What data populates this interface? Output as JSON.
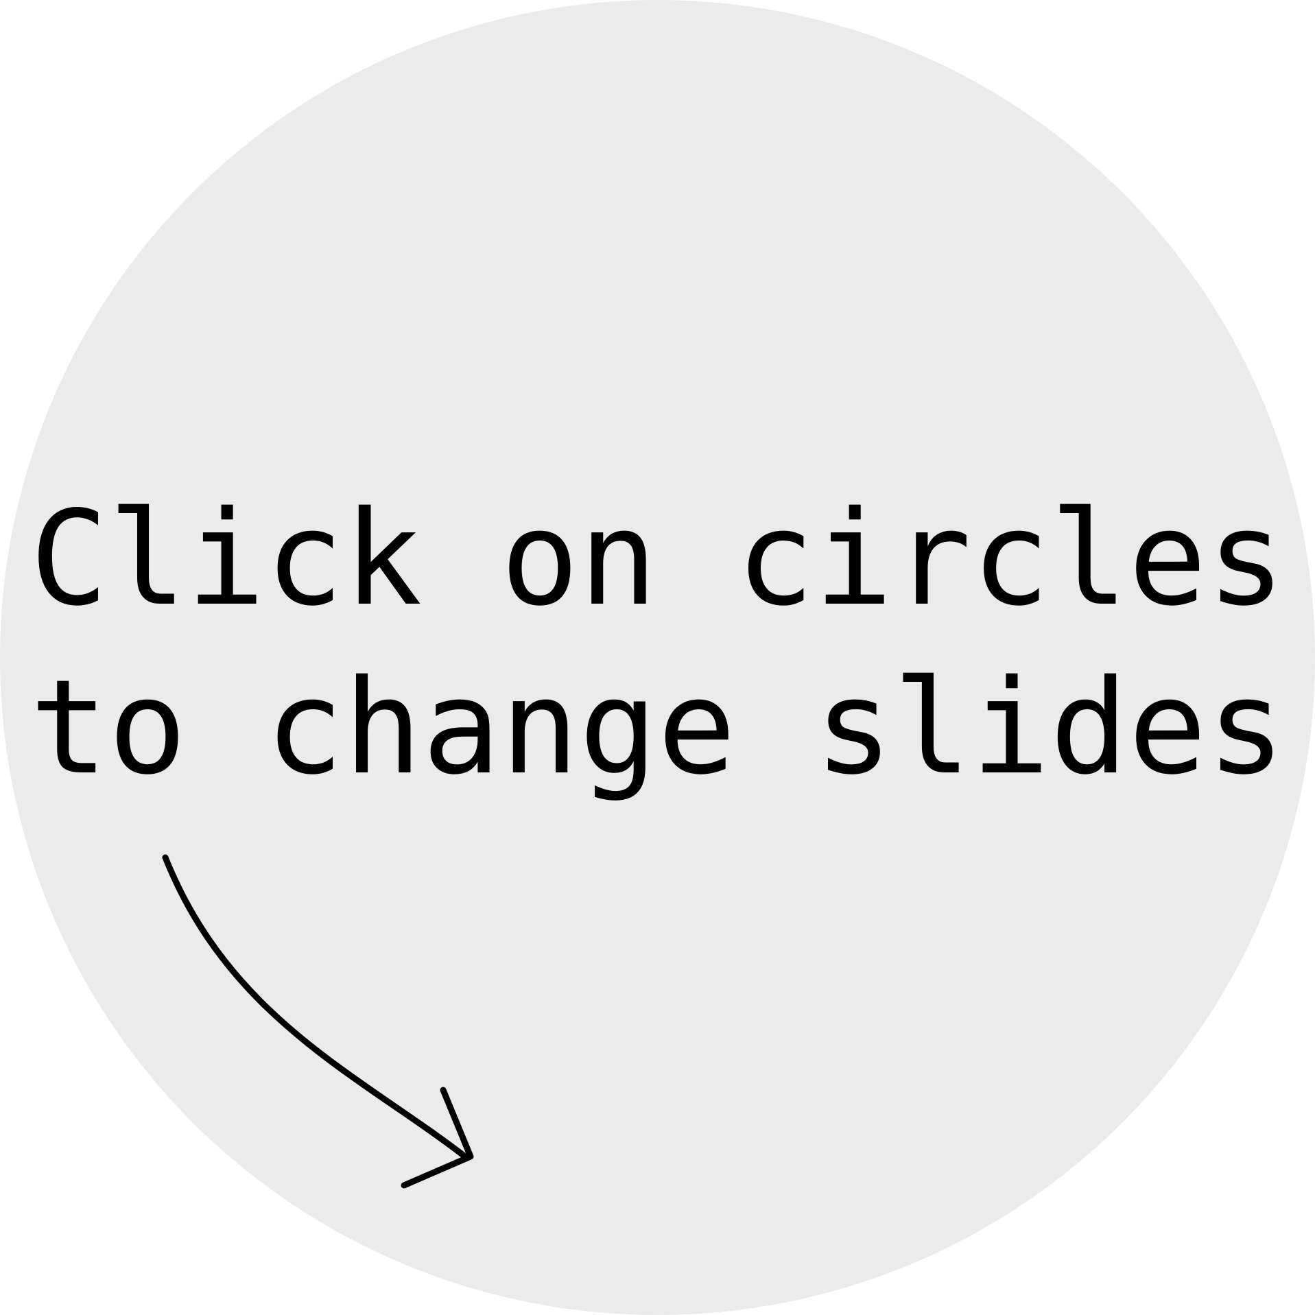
{
  "instruction": {
    "line1": "Click on circles",
    "line2": "to change slides"
  },
  "colors": {
    "circle_fill": "#ebebeb",
    "text": "#000000",
    "arrow": "#000000"
  },
  "icons": {
    "pointer": "curved-arrow-icon"
  }
}
